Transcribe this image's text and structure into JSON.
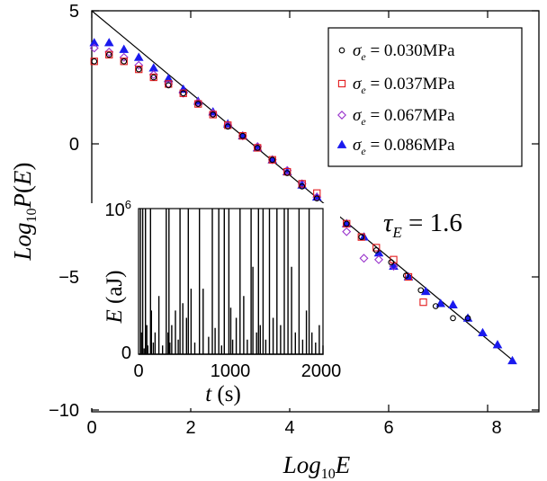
{
  "chart_data": [
    {
      "type": "scatter",
      "xlabel": "Log10E",
      "ylabel": "Log10P(E)",
      "xlim": [
        0,
        8.6
      ],
      "ylim": [
        -10,
        5
      ],
      "x_ticks": [
        "0",
        "2",
        "4",
        "6",
        "8"
      ],
      "y_ticks": [
        "5",
        "0",
        "−5",
        "−10"
      ],
      "annotation": "τE = 1.6",
      "legend_position": "top-right",
      "grid": false,
      "fit_line": {
        "x": [
          0,
          8.55
        ],
        "y": [
          5.0,
          -8.2
        ],
        "slope": -1.6
      },
      "series": [
        {
          "name": "σe = 0.030MPa",
          "marker": "open-circle",
          "color": "#000000",
          "x": [
            0.05,
            0.35,
            0.65,
            0.95,
            1.25,
            1.55,
            1.85,
            2.15,
            2.45,
            2.75,
            3.05,
            3.35,
            3.65,
            3.95,
            4.25,
            4.55,
            4.85,
            5.15,
            5.45,
            5.75,
            6.05,
            6.35,
            6.65,
            6.95,
            7.3,
            7.6
          ],
          "y": [
            3.1,
            3.35,
            3.1,
            2.8,
            2.5,
            2.2,
            1.9,
            1.5,
            1.1,
            0.65,
            0.3,
            -0.15,
            -0.6,
            -1.1,
            -1.6,
            -2.05,
            -2.55,
            -3.0,
            -3.5,
            -4.0,
            -4.45,
            -4.95,
            -5.5,
            -6.1,
            -6.55,
            -6.55
          ]
        },
        {
          "name": "σe = 0.037MPa",
          "marker": "open-square",
          "color": "#e31a1c",
          "x": [
            0.05,
            0.35,
            0.65,
            0.95,
            1.25,
            1.55,
            1.85,
            2.15,
            2.45,
            2.75,
            3.05,
            3.35,
            3.65,
            3.95,
            4.25,
            4.55,
            4.85,
            5.15,
            5.45,
            5.75,
            6.1,
            6.4,
            6.7
          ],
          "y": [
            3.1,
            3.35,
            3.1,
            2.8,
            2.5,
            2.25,
            1.9,
            1.5,
            1.1,
            0.7,
            0.3,
            -0.15,
            -0.6,
            -1.05,
            -1.5,
            -1.85,
            -2.55,
            -3.0,
            -3.5,
            -3.9,
            -4.35,
            -5.0,
            -5.95
          ]
        },
        {
          "name": "σe = 0.067MPa",
          "marker": "open-diamond",
          "color": "#9933cc",
          "x": [
            0.05,
            0.35,
            0.65,
            0.95,
            1.25,
            1.55,
            1.85,
            2.15,
            2.45,
            2.75,
            3.05,
            3.35,
            3.65,
            3.95,
            4.25,
            4.55,
            4.85,
            5.15,
            5.5,
            5.8,
            6.1
          ],
          "y": [
            3.6,
            3.45,
            3.25,
            2.95,
            2.6,
            2.25,
            1.9,
            1.55,
            1.15,
            0.7,
            0.3,
            -0.1,
            -0.6,
            -1.0,
            -1.5,
            -2.0,
            -2.55,
            -3.3,
            -4.3,
            -4.35,
            -4.6
          ]
        },
        {
          "name": "σe = 0.086MPa",
          "marker": "filled-triangle",
          "color": "#1a1aee",
          "x": [
            0.05,
            0.35,
            0.65,
            0.95,
            1.25,
            1.55,
            1.85,
            2.15,
            2.45,
            2.75,
            3.05,
            3.35,
            3.65,
            3.95,
            4.25,
            4.55,
            4.85,
            5.15,
            5.5,
            5.8,
            6.1,
            6.4,
            6.75,
            7.05,
            7.3,
            7.6,
            7.9,
            8.2,
            8.5
          ],
          "y": [
            3.8,
            3.8,
            3.55,
            3.25,
            2.85,
            2.45,
            2.05,
            1.6,
            1.2,
            0.75,
            0.3,
            -0.15,
            -0.6,
            -1.05,
            -1.55,
            -2.0,
            -2.55,
            -3.0,
            -3.5,
            -4.1,
            -4.6,
            -5.0,
            -5.55,
            -6.0,
            -6.05,
            -6.55,
            -7.1,
            -7.55,
            -8.15
          ]
        }
      ]
    },
    {
      "type": "line",
      "inset": true,
      "xlabel": "t (s)",
      "ylabel": "E (aJ)",
      "xlim": [
        0,
        2000
      ],
      "ylim": [
        0,
        1000000
      ],
      "x_ticks": [
        "0",
        "1000",
        "2000"
      ],
      "y_ticks": [
        "0",
        "10⁶"
      ],
      "grid": false,
      "series": [
        {
          "time_s": [
            0,
            20,
            30,
            45,
            60,
            75,
            90,
            100,
            130,
            140,
            160,
            180,
            220,
            260,
            300,
            320,
            330,
            340,
            360,
            400,
            430,
            450,
            480,
            520,
            540,
            570,
            610,
            660,
            700,
            760,
            800,
            830,
            870,
            900,
            930,
            980,
            1000,
            1020,
            1060,
            1100,
            1140,
            1180,
            1220,
            1240,
            1280,
            1300,
            1320,
            1350,
            1380,
            1420,
            1460,
            1500,
            1540,
            1580,
            1620,
            1660,
            1700,
            1740,
            1780,
            1820,
            1850,
            1880,
            1920,
            1960,
            2000
          ],
          "energy_aJ": [
            0,
            1000000,
            150000,
            1000000,
            40000,
            1000000,
            200000,
            60000,
            1000000,
            300000,
            80000,
            150000,
            400000,
            60000,
            1000000,
            150000,
            1000000,
            80000,
            200000,
            300000,
            100000,
            1000000,
            350000,
            250000,
            1000000,
            450000,
            80000,
            1000000,
            450000,
            120000,
            1000000,
            180000,
            1000000,
            60000,
            1000000,
            1000000,
            320000,
            100000,
            250000,
            1000000,
            400000,
            100000,
            1000000,
            600000,
            150000,
            1000000,
            200000,
            1000000,
            100000,
            1000000,
            250000,
            1000000,
            200000,
            1000000,
            1000000,
            600000,
            150000,
            1000000,
            100000,
            300000,
            1000000,
            150000,
            80000,
            200000,
            60000
          ]
        }
      ]
    }
  ]
}
